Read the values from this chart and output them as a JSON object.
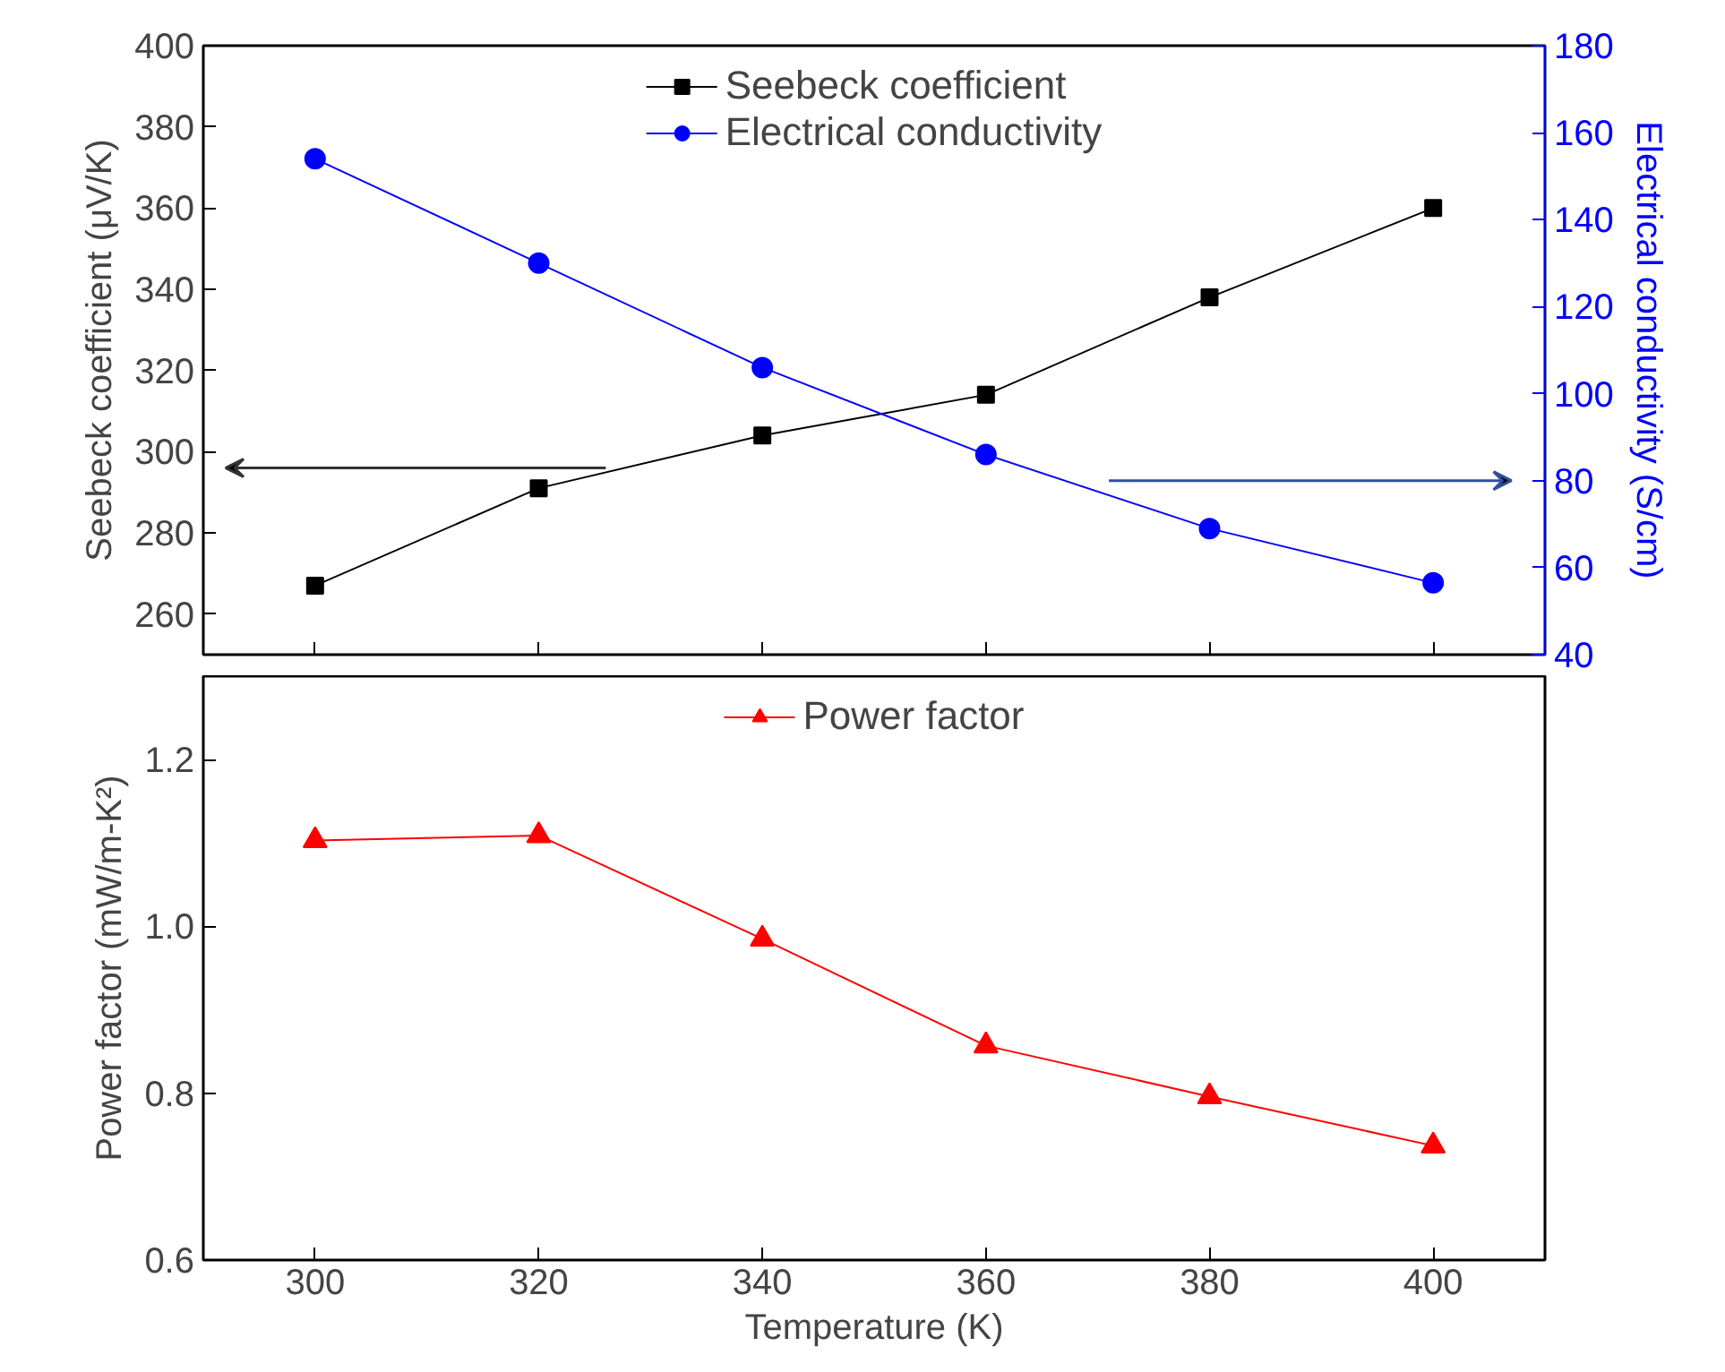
{
  "chart_data": [
    {
      "type": "line",
      "x": [
        300,
        320,
        340,
        360,
        380,
        400
      ],
      "ylabel": "Seebeck coefficient (μV/K)",
      "y2label": "Electrical conductivity (S/cm)",
      "series": [
        {
          "name": "Seebeck coefficient",
          "color": "#000000",
          "marker": "square",
          "values": [
            267,
            291,
            304,
            314,
            338,
            360
          ]
        },
        {
          "name": "Electrical conductivity",
          "color": "#0000ff",
          "marker": "circle",
          "axis": "y2",
          "values": [
            154,
            130,
            106,
            86,
            69,
            56.5
          ]
        }
      ],
      "xlim": [
        290,
        410
      ],
      "xticks": [
        300,
        320,
        340,
        360,
        380,
        400
      ],
      "ylim": [
        250,
        400
      ],
      "yticks": [
        260,
        280,
        300,
        320,
        340,
        360,
        380,
        400
      ],
      "y2lim": [
        40,
        180
      ],
      "y2ticks": [
        40,
        60,
        80,
        100,
        120,
        140,
        160,
        180
      ],
      "legend": "top",
      "grid": false,
      "tick_labels": "y",
      "line_style": "solid"
    },
    {
      "type": "line",
      "x": [
        300,
        320,
        340,
        360,
        380,
        400
      ],
      "xlabel": "Temperature (K)",
      "ylabel": "Power factor (mW/m-K²)",
      "series": [
        {
          "name": "Power factor",
          "color": "#ff0000",
          "marker": "triangle",
          "values": [
            1.103,
            1.109,
            0.985,
            0.857,
            0.796,
            0.737
          ]
        }
      ],
      "xlim": [
        290,
        410
      ],
      "xticks": [
        300,
        320,
        340,
        360,
        380,
        400
      ],
      "ylim": [
        0.6,
        1.3
      ],
      "yticks": [
        0.6,
        0.8,
        {
          "value": 1.0,
          "label": "1.0"
        },
        1.2
      ],
      "legend": "top",
      "grid": false,
      "line_style": "solid"
    }
  ]
}
